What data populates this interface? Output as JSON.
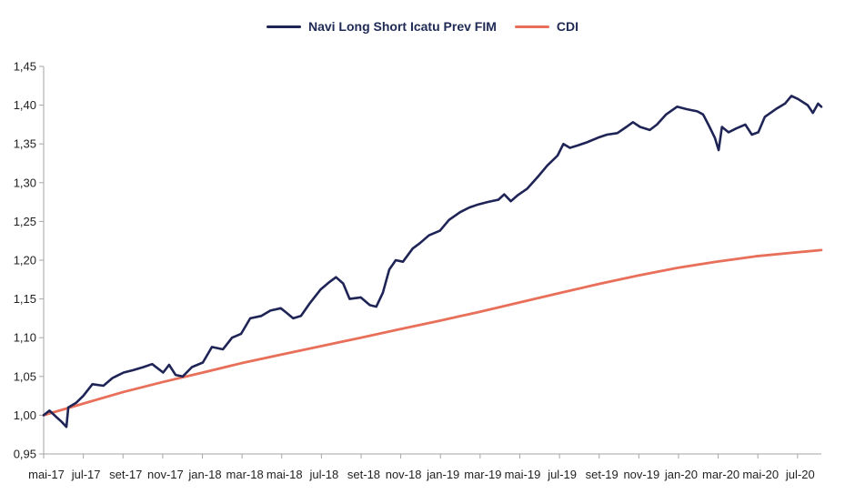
{
  "chart_data": {
    "type": "line",
    "title": "",
    "xlabel": "",
    "ylabel": "",
    "ylim": [
      0.95,
      1.45
    ],
    "yticks": [
      "0,95",
      "1,00",
      "1,05",
      "1,10",
      "1,15",
      "1,20",
      "1,25",
      "1,30",
      "1,35",
      "1,40",
      "1,45"
    ],
    "xticks": [
      "mai-17",
      "jul-17",
      "set-17",
      "nov-17",
      "jan-18",
      "mar-18",
      "mai-18",
      "jul-18",
      "set-18",
      "nov-18",
      "jan-19",
      "mar-19",
      "mai-19",
      "jul-19",
      "set-19",
      "nov-19",
      "jan-20",
      "mar-20",
      "mai-20",
      "jul-20"
    ],
    "legend_position": "top-center",
    "grid": false,
    "series": [
      {
        "name": "Navi Long Short Icatu Prev FIM",
        "color": "#1f2456",
        "points": [
          [
            "2017-05-01",
            1.0
          ],
          [
            "2017-05-10",
            1.006
          ],
          [
            "2017-05-20",
            0.998
          ],
          [
            "2017-05-28",
            0.992
          ],
          [
            "2017-06-05",
            0.985
          ],
          [
            "2017-06-08",
            1.01
          ],
          [
            "2017-06-20",
            1.016
          ],
          [
            "2017-07-01",
            1.025
          ],
          [
            "2017-07-15",
            1.04
          ],
          [
            "2017-08-01",
            1.038
          ],
          [
            "2017-08-15",
            1.048
          ],
          [
            "2017-09-01",
            1.055
          ],
          [
            "2017-09-15",
            1.058
          ],
          [
            "2017-10-01",
            1.062
          ],
          [
            "2017-10-15",
            1.066
          ],
          [
            "2017-11-01",
            1.055
          ],
          [
            "2017-11-10",
            1.065
          ],
          [
            "2017-11-20",
            1.052
          ],
          [
            "2017-12-01",
            1.05
          ],
          [
            "2017-12-15",
            1.062
          ],
          [
            "2018-01-01",
            1.068
          ],
          [
            "2018-01-15",
            1.088
          ],
          [
            "2018-02-01",
            1.085
          ],
          [
            "2018-02-15",
            1.1
          ],
          [
            "2018-03-01",
            1.105
          ],
          [
            "2018-03-15",
            1.125
          ],
          [
            "2018-04-01",
            1.128
          ],
          [
            "2018-04-15",
            1.135
          ],
          [
            "2018-05-01",
            1.138
          ],
          [
            "2018-05-10",
            1.132
          ],
          [
            "2018-05-20",
            1.125
          ],
          [
            "2018-06-01",
            1.128
          ],
          [
            "2018-06-15",
            1.145
          ],
          [
            "2018-07-01",
            1.162
          ],
          [
            "2018-07-15",
            1.172
          ],
          [
            "2018-07-25",
            1.178
          ],
          [
            "2018-08-05",
            1.17
          ],
          [
            "2018-08-15",
            1.15
          ],
          [
            "2018-09-01",
            1.152
          ],
          [
            "2018-09-15",
            1.142
          ],
          [
            "2018-09-25",
            1.14
          ],
          [
            "2018-10-05",
            1.158
          ],
          [
            "2018-10-15",
            1.188
          ],
          [
            "2018-10-25",
            1.2
          ],
          [
            "2018-11-05",
            1.198
          ],
          [
            "2018-11-20",
            1.215
          ],
          [
            "2018-12-01",
            1.222
          ],
          [
            "2018-12-15",
            1.232
          ],
          [
            "2019-01-01",
            1.238
          ],
          [
            "2019-01-15",
            1.252
          ],
          [
            "2019-02-01",
            1.262
          ],
          [
            "2019-02-15",
            1.268
          ],
          [
            "2019-03-01",
            1.272
          ],
          [
            "2019-03-15",
            1.275
          ],
          [
            "2019-04-01",
            1.278
          ],
          [
            "2019-04-10",
            1.285
          ],
          [
            "2019-04-20",
            1.276
          ],
          [
            "2019-05-01",
            1.284
          ],
          [
            "2019-05-15",
            1.292
          ],
          [
            "2019-06-01",
            1.308
          ],
          [
            "2019-06-15",
            1.322
          ],
          [
            "2019-07-01",
            1.335
          ],
          [
            "2019-07-10",
            1.35
          ],
          [
            "2019-07-20",
            1.345
          ],
          [
            "2019-08-01",
            1.348
          ],
          [
            "2019-08-15",
            1.352
          ],
          [
            "2019-09-01",
            1.358
          ],
          [
            "2019-09-15",
            1.362
          ],
          [
            "2019-10-01",
            1.364
          ],
          [
            "2019-10-15",
            1.372
          ],
          [
            "2019-10-25",
            1.378
          ],
          [
            "2019-11-05",
            1.372
          ],
          [
            "2019-11-20",
            1.368
          ],
          [
            "2019-12-01",
            1.375
          ],
          [
            "2019-12-15",
            1.388
          ],
          [
            "2020-01-01",
            1.398
          ],
          [
            "2020-01-15",
            1.395
          ],
          [
            "2020-02-01",
            1.392
          ],
          [
            "2020-02-10",
            1.388
          ],
          [
            "2020-02-20",
            1.372
          ],
          [
            "2020-02-28",
            1.358
          ],
          [
            "2020-03-05",
            1.342
          ],
          [
            "2020-03-10",
            1.372
          ],
          [
            "2020-03-20",
            1.365
          ],
          [
            "2020-04-01",
            1.37
          ],
          [
            "2020-04-15",
            1.375
          ],
          [
            "2020-04-25",
            1.362
          ],
          [
            "2020-05-05",
            1.365
          ],
          [
            "2020-05-15",
            1.385
          ],
          [
            "2020-06-01",
            1.395
          ],
          [
            "2020-06-15",
            1.402
          ],
          [
            "2020-06-25",
            1.412
          ],
          [
            "2020-07-05",
            1.408
          ],
          [
            "2020-07-20",
            1.4
          ],
          [
            "2020-07-28",
            1.39
          ],
          [
            "2020-08-05",
            1.402
          ],
          [
            "2020-08-10",
            1.398
          ]
        ]
      },
      {
        "name": "CDI",
        "color": "#e8705b",
        "points": [
          [
            "2017-05-01",
            1.0
          ],
          [
            "2017-07-01",
            1.015
          ],
          [
            "2017-09-01",
            1.03
          ],
          [
            "2017-11-01",
            1.043
          ],
          [
            "2018-01-01",
            1.055
          ],
          [
            "2018-03-01",
            1.067
          ],
          [
            "2018-05-01",
            1.078
          ],
          [
            "2018-07-01",
            1.089
          ],
          [
            "2018-09-01",
            1.1
          ],
          [
            "2018-11-01",
            1.111
          ],
          [
            "2019-01-01",
            1.122
          ],
          [
            "2019-03-01",
            1.133
          ],
          [
            "2019-05-01",
            1.145
          ],
          [
            "2019-07-01",
            1.157
          ],
          [
            "2019-09-01",
            1.169
          ],
          [
            "2019-11-01",
            1.18
          ],
          [
            "2020-01-01",
            1.19
          ],
          [
            "2020-03-01",
            1.198
          ],
          [
            "2020-05-01",
            1.205
          ],
          [
            "2020-07-01",
            1.21
          ],
          [
            "2020-08-10",
            1.213
          ]
        ]
      }
    ]
  }
}
